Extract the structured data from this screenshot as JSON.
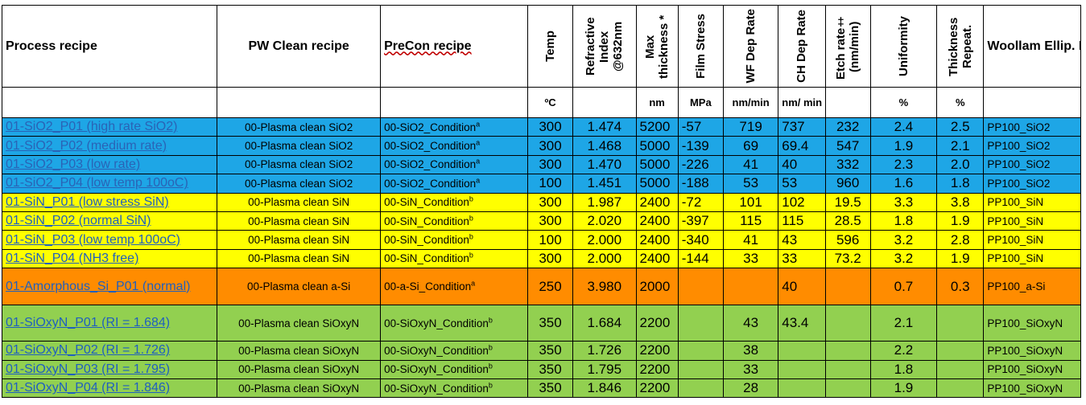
{
  "table": {
    "headers": {
      "process": "Process recipe",
      "pw_clean": "PW Clean recipe",
      "precon": "PreCon recipe",
      "temp": "Temp",
      "ri": "Refractive Index @632nm",
      "max_thick": "Max thickness *",
      "film_stress": "Film Stress",
      "wf_rate": "WF Dep Rate",
      "ch_rate": "CH Dep Rate",
      "etch_rate": "Etch rate‡ (nm/min)",
      "uniformity": "Uniformity",
      "repeat": "Thickness Repeat.",
      "woollam": "Woollam Ellip. Recipe"
    },
    "units": {
      "temp": "ºC",
      "max_thick": "nm",
      "film_stress": "MPa",
      "wf_rate": "nm/min",
      "ch_rate": "nm/ min",
      "uniformity": "%",
      "repeat": "%"
    },
    "rows": [
      {
        "name": "01-SiO2_P01 (high rate SiO2)",
        "pw": "00-Plasma clean SiO2",
        "precon": "00-SiO2_Condition",
        "sup": "a",
        "temp": "300",
        "ri": "1.474",
        "max": "5200",
        "stress": "-57",
        "wf": "719",
        "ch": "737",
        "etch": "232",
        "unif": "2.4",
        "rep": "2.5",
        "woollam": "PP100_SiO2"
      },
      {
        "name": "01-SiO2_P02 (medium rate)",
        "pw": "00-Plasma clean SiO2",
        "precon": "00-SiO2_Condition",
        "sup": "a",
        "temp": "300",
        "ri": "1.468",
        "max": "5000",
        "stress": "-139",
        "wf": "69",
        "ch": "69.4",
        "etch": "547",
        "unif": "1.9",
        "rep": "2.1",
        "woollam": "PP100_SiO2"
      },
      {
        "name": "01-SiO2_P03 (low rate)",
        "pw": "00-Plasma clean SiO2",
        "precon": "00-SiO2_Condition",
        "sup": "a",
        "temp": "300",
        "ri": "1.470",
        "max": "5000",
        "stress": "-226",
        "wf": "41",
        "ch": "40",
        "etch": "332",
        "unif": "2.3",
        "rep": "2.0",
        "woollam": "PP100_SiO2"
      },
      {
        "name": "01-SiO2_P04 (low temp 100oC)",
        "pw": "00-Plasma clean SiO2",
        "precon": "00-SiO2_Condition",
        "sup": "a",
        "temp": "100",
        "ri": "1.451",
        "max": "5000",
        "stress": "-188",
        "wf": "53",
        "ch": "53",
        "etch": "960",
        "unif": "1.6",
        "rep": "1.8",
        "woollam": "PP100_SiO2"
      },
      {
        "name": "01-SiN_P01 (low stress SiN)",
        "pw": "00-Plasma clean SiN",
        "precon": "00-SiN_Condition",
        "sup": "b",
        "temp": "300",
        "ri": "1.987",
        "max": "2400",
        "stress": "-72",
        "wf": "101",
        "ch": "102",
        "etch": "19.5",
        "unif": "3.3",
        "rep": "3.8",
        "woollam": "PP100_SiN"
      },
      {
        "name": "01-SiN_P02 (normal SiN)",
        "pw": "00-Plasma clean SiN",
        "precon": "00-SiN_Condition",
        "sup": "b",
        "temp": "300",
        "ri": "2.020",
        "max": "2400",
        "stress": "-397",
        "wf": "115",
        "ch": "115",
        "etch": "28.5",
        "unif": "1.8",
        "rep": "1.9",
        "woollam": "PP100_SiN"
      },
      {
        "name": "01-SiN_P03 (low temp 100oC)",
        "pw": "00-Plasma clean SiN",
        "precon": "00-SiN_Condition",
        "sup": "b",
        "temp": "100",
        "ri": "2.000",
        "max": "2400",
        "stress": "-340",
        "wf": "41",
        "ch": "43",
        "etch": "596",
        "unif": "3.2",
        "rep": "2.8",
        "woollam": "PP100_SiN"
      },
      {
        "name": "01-SiN_P04 (NH3 free)",
        "pw": "00-Plasma clean SiN",
        "precon": "00-SiN_Condition",
        "sup": "b",
        "temp": "300",
        "ri": "2.000",
        "max": "2400",
        "stress": "-144",
        "wf": "33",
        "ch": "33",
        "etch": "73.2",
        "unif": "3.2",
        "rep": "1.9",
        "woollam": "PP100_SiN"
      },
      {
        "name": "01-Amorphous_Si_P01 (normal)",
        "pw": "00-Plasma clean a-Si",
        "precon": "00-a-Si_Condition",
        "sup": "a",
        "temp": "250",
        "ri": "3.980",
        "max": "2000",
        "stress": "",
        "wf": "",
        "ch": "40",
        "etch": "",
        "unif": "0.7",
        "rep": "0.3",
        "woollam": "PP100_a-Si"
      },
      {
        "name": "01-SiOxyN_P01 (RI = 1.684)",
        "pw": "00-Plasma clean SiOxyN",
        "precon": "00-SiOxyN_Condition",
        "sup": "b",
        "temp": "350",
        "ri": "1.684",
        "max": "2200",
        "stress": "",
        "wf": "43",
        "ch": "43.4",
        "etch": "",
        "unif": "2.1",
        "rep": "",
        "woollam": "PP100_SiOxyN"
      },
      {
        "name": "01-SiOxyN_P02 (RI = 1.726)",
        "pw": "00-Plasma clean SiOxyN",
        "precon": "00-SiOxyN_Condition",
        "sup": "b",
        "temp": "350",
        "ri": "1.726",
        "max": "2200",
        "stress": "",
        "wf": "38",
        "ch": "",
        "etch": "",
        "unif": "2.2",
        "rep": "",
        "woollam": "PP100_SiOxyN"
      },
      {
        "name": "01-SiOxyN_P03 (RI = 1.795)",
        "pw": "00-Plasma clean SiOxyN",
        "precon": "00-SiOxyN_Condition",
        "sup": "b",
        "temp": "350",
        "ri": "1.795",
        "max": "2200",
        "stress": "",
        "wf": "33",
        "ch": "",
        "etch": "",
        "unif": "1.8",
        "rep": "",
        "woollam": "PP100_SiOxyN"
      },
      {
        "name": "01-SiOxyN_P04 (RI = 1.846)",
        "pw": "00-Plasma clean SiOxyN",
        "precon": "00-SiOxyN_Condition",
        "sup": "b",
        "temp": "350",
        "ri": "1.846",
        "max": "2200",
        "stress": "",
        "wf": "28",
        "ch": "",
        "etch": "",
        "unif": "1.9",
        "rep": "",
        "woollam": "PP100_SiOxyN"
      }
    ],
    "row_colors": {
      "sio2": "#1ea6e6",
      "sin": "#ffff00",
      "asi": "#ff8c00",
      "sioxyn": "#92d050"
    }
  }
}
